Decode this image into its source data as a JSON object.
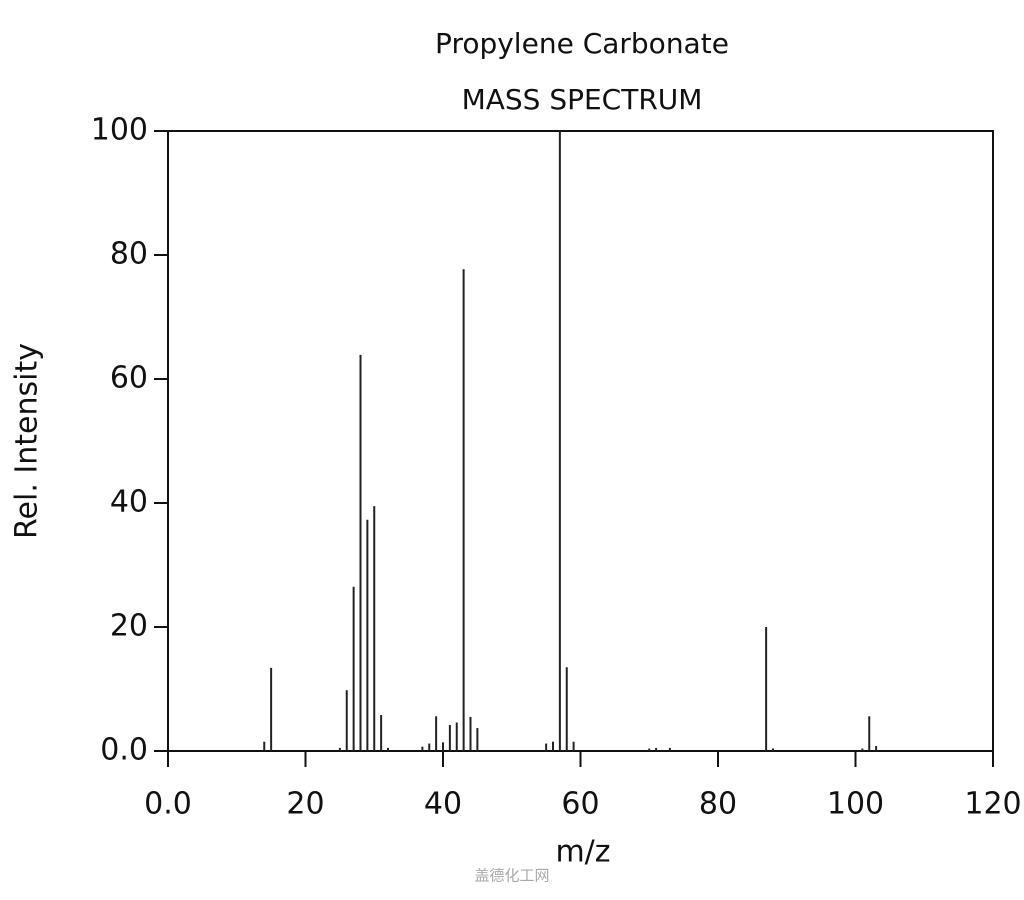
{
  "chart_data": {
    "type": "stem",
    "title": "Propylene Carbonate",
    "subtitle": "MASS SPECTRUM",
    "x_label": "m/z",
    "y_label": "Rel. Intensity",
    "watermark": "盖德化工网",
    "color": "#222222",
    "x": [
      14,
      15,
      25,
      26,
      27,
      28,
      29,
      30,
      31,
      32,
      37,
      38,
      39,
      40,
      41,
      42,
      43,
      44,
      45,
      55,
      56,
      57,
      58,
      59,
      70,
      71,
      73,
      87,
      88,
      101,
      102,
      103
    ],
    "values": [
      1.5,
      13.4,
      0.5,
      9.8,
      26.5,
      63.9,
      37.3,
      39.5,
      5.8,
      0.5,
      0.7,
      1.2,
      5.6,
      1.4,
      4.2,
      4.6,
      77.7,
      5.5,
      3.7,
      1.2,
      1.5,
      100,
      13.5,
      1.5,
      0.4,
      0.5,
      0.5,
      20,
      0.4,
      0.4,
      5.6,
      0.8
    ],
    "xlim": [
      0,
      120
    ],
    "ylim": [
      0,
      100
    ],
    "xticks": [
      {
        "value": 0,
        "label": "0.0"
      },
      20,
      40,
      60,
      80,
      100,
      120
    ],
    "yticks": [
      {
        "value": 0,
        "label": "0.0"
      },
      20,
      40,
      60,
      80,
      100
    ]
  }
}
